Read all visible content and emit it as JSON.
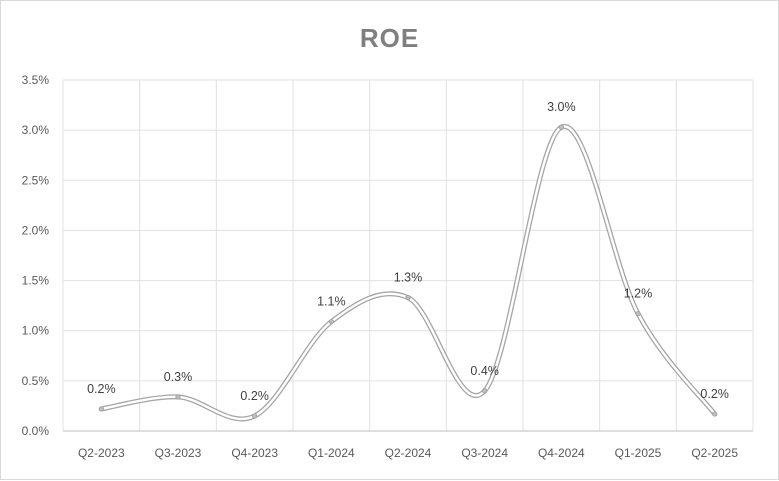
{
  "chart_data": {
    "type": "line",
    "title": "ROE",
    "categories": [
      "Q2-2023",
      "Q3-2023",
      "Q4-2023",
      "Q1-2024",
      "Q2-2024",
      "Q3-2024",
      "Q4-2024",
      "Q1-2025",
      "Q2-2025"
    ],
    "series": [
      {
        "values": [
          0.22,
          0.34,
          0.15,
          1.09,
          1.33,
          0.4,
          3.03,
          1.17,
          0.17
        ],
        "data_labels": [
          "0.2%",
          "0.3%",
          "0.2%",
          "1.1%",
          "1.3%",
          "0.4%",
          "3.0%",
          "1.2%",
          "0.2%"
        ]
      }
    ],
    "y_ticks": [
      "0.0%",
      "0.5%",
      "1.0%",
      "1.5%",
      "2.0%",
      "2.5%",
      "3.0%",
      "3.5%"
    ],
    "ylim": [
      0,
      3.5
    ],
    "y_unit": "%",
    "smooth": true,
    "grid": true,
    "legend": "none",
    "colors": {
      "line": "#c8c8c8",
      "line_outline": "#a6a6a6",
      "marker": "#bfbfbf",
      "grid": "#e0e0e0",
      "axis": "#bfbfbf",
      "title": "#7f7f7f"
    }
  }
}
